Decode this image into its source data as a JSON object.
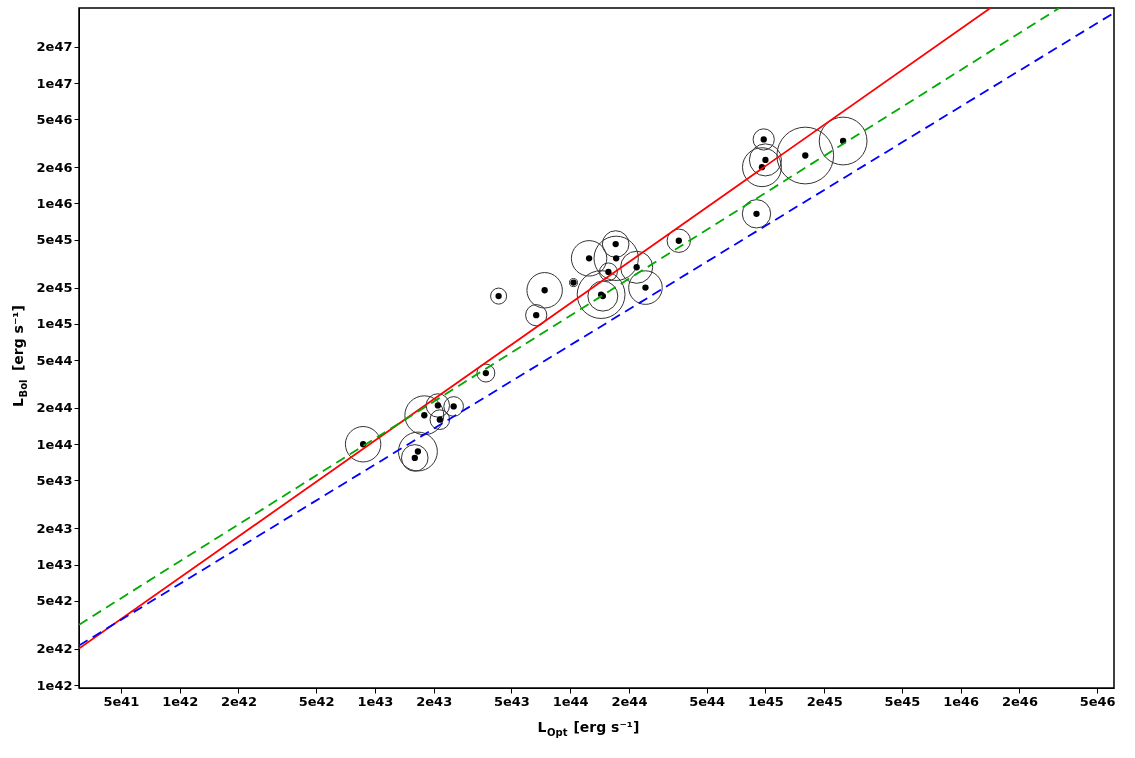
{
  "chart_data": {
    "type": "bubble",
    "xlabel": "L$_{Opt}$ [erg s⁻¹]",
    "ylabel": "L$_{Bol}$ [erg s⁻¹]",
    "log": "xy",
    "grid": false,
    "xlim": [
      3.05e+41,
      6.1e+46
    ],
    "ylim": [
      9.45e+41,
      4.2e+47
    ],
    "xticks": [
      {
        "value": 5e+41,
        "label": "5e41"
      },
      {
        "value": 1e+42,
        "label": "1e42"
      },
      {
        "value": 2e+42,
        "label": "2e42"
      },
      {
        "value": 5e+42,
        "label": "5e42"
      },
      {
        "value": 1e+43,
        "label": "1e43"
      },
      {
        "value": 2e+43,
        "label": "2e43"
      },
      {
        "value": 5e+43,
        "label": "5e43"
      },
      {
        "value": 1e+44,
        "label": "1e44"
      },
      {
        "value": 2e+44,
        "label": "2e44"
      },
      {
        "value": 5e+44,
        "label": "5e44"
      },
      {
        "value": 1e+45,
        "label": "1e45"
      },
      {
        "value": 2e+45,
        "label": "2e45"
      },
      {
        "value": 5e+45,
        "label": "5e45"
      },
      {
        "value": 1e+46,
        "label": "1e46"
      },
      {
        "value": 2e+46,
        "label": "2e46"
      },
      {
        "value": 5e+46,
        "label": "5e46"
      }
    ],
    "yticks": [
      {
        "value": 1e+42,
        "label": "1e42"
      },
      {
        "value": 2e+42,
        "label": "2e42"
      },
      {
        "value": 5e+42,
        "label": "5e42"
      },
      {
        "value": 1e+43,
        "label": "1e43"
      },
      {
        "value": 2e+43,
        "label": "2e43"
      },
      {
        "value": 5e+43,
        "label": "5e43"
      },
      {
        "value": 1e+44,
        "label": "1e44"
      },
      {
        "value": 2e+44,
        "label": "2e44"
      },
      {
        "value": 5e+44,
        "label": "5e44"
      },
      {
        "value": 1e+45,
        "label": "1e45"
      },
      {
        "value": 2e+45,
        "label": "2e45"
      },
      {
        "value": 5e+45,
        "label": "5e45"
      },
      {
        "value": 1e+46,
        "label": "1e46"
      },
      {
        "value": 2e+46,
        "label": "2e46"
      },
      {
        "value": 5e+46,
        "label": "5e46"
      },
      {
        "value": 1e+47,
        "label": "1e47"
      },
      {
        "value": 2e+47,
        "label": "2e47"
      }
    ],
    "series": [
      {
        "type": "bubble",
        "color": "#333333",
        "x": [
          8.7e+42,
          1.66e+43,
          1.6e+43,
          1.79e+43,
          2.1e+43,
          2.15e+43,
          2.53e+43,
          3.7e+43,
          4.3e+43,
          6.7e+43,
          7.4e+43,
          1.04e+44,
          1.25e+44,
          1.44e+44,
          1.47e+44,
          1.57e+44,
          1.71e+44,
          1.72e+44,
          2.19e+44,
          2.43e+44,
          3.6e+44,
          9e+44,
          9.6e+44,
          1e+45,
          9.8e+44,
          1.6e+45,
          2.5e+45
        ],
        "values": [
          1e+44,
          8.7e+43,
          7.7e+43,
          1.74e+44,
          2.1e+44,
          1.6e+44,
          2.06e+44,
          3.9e+44,
          1.7e+45,
          1.18e+45,
          1.9e+45,
          2.2e+45,
          3.5e+45,
          1.75e+45,
          1.7e+45,
          2.7e+45,
          4.6e+45,
          3.5e+45,
          2.95e+45,
          2e+45,
          4.9e+45,
          8.2e+45,
          2e+46,
          2.3e+46,
          3.4e+46,
          2.5e+46,
          3.3e+46
        ],
        "sizes": [
          0.39,
          0.47,
          0.22,
          0.47,
          0.17,
          0.12,
          0.12,
          0.1,
          0.08,
          0.14,
          0.39,
          0.02,
          0.39,
          0.71,
          0.28,
          0.1,
          0.22,
          0.61,
          0.32,
          0.35,
          0.17,
          0.25,
          0.47,
          0.32,
          0.14,
          1,
          0.71
        ]
      },
      {
        "type": "scatter",
        "color": "#000000",
        "marker": "circle",
        "x": [
          8.7e+42,
          1.66e+43,
          1.6e+43,
          1.79e+43,
          2.1e+43,
          2.15e+43,
          2.53e+43,
          3.7e+43,
          4.3e+43,
          6.7e+43,
          7.4e+43,
          1.04e+44,
          1.25e+44,
          1.44e+44,
          1.47e+44,
          1.57e+44,
          1.71e+44,
          1.72e+44,
          2.19e+44,
          2.43e+44,
          3.6e+44,
          9e+44,
          9.6e+44,
          1e+45,
          9.8e+44,
          1.6e+45,
          2.5e+45
        ],
        "values": [
          1e+44,
          8.7e+43,
          7.7e+43,
          1.74e+44,
          2.1e+44,
          1.6e+44,
          2.06e+44,
          3.9e+44,
          1.7e+45,
          1.18e+45,
          1.9e+45,
          2.2e+45,
          3.5e+45,
          1.75e+45,
          1.7e+45,
          2.7e+45,
          4.6e+45,
          3.5e+45,
          2.95e+45,
          2e+45,
          4.9e+45,
          8.2e+45,
          2e+46,
          2.3e+46,
          3.4e+46,
          2.5e+46,
          3.3e+46
        ]
      },
      {
        "type": "line",
        "color": "#ff0000",
        "line_style": "solid",
        "x": [
          3.05e+41,
          1.42e+46
        ],
        "values": [
          2.01e+42,
          4.2e+47
        ]
      },
      {
        "type": "line",
        "color": "#00aa00",
        "line_style": "dashed",
        "x": [
          3.05e+41,
          3.2e+46
        ],
        "values": [
          3.17e+42,
          4.2e+47
        ]
      },
      {
        "type": "line",
        "color": "#0000ff",
        "line_style": "dashed",
        "x": [
          3.05e+41,
          6.1e+46
        ],
        "values": [
          2.13e+42,
          3.83e+47
        ]
      }
    ]
  }
}
